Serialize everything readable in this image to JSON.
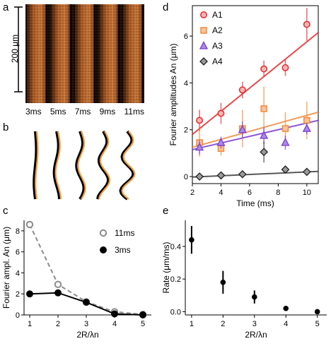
{
  "panels": {
    "a": {
      "letter": "a",
      "scale_label": "200 μm",
      "time_labels": [
        "3ms",
        "5ms",
        "7ms",
        "9ms",
        "11ms"
      ],
      "colors": {
        "background": "#1a0d05",
        "front": "#e0782f"
      }
    },
    "b": {
      "letter": "b",
      "colors": {
        "black_trace": "#000000",
        "orange_trace": "#f0a040"
      }
    },
    "c": {
      "letter": "c"
    },
    "d": {
      "letter": "d"
    },
    "e": {
      "letter": "e"
    }
  },
  "chart_data": [
    {
      "id": "c",
      "type": "line",
      "xlabel": "2R/λn",
      "ylabel": "Fourier ampl. An (μm)",
      "x": [
        1,
        2,
        3,
        4,
        5
      ],
      "xlim": [
        0.8,
        5.3
      ],
      "ylim": [
        0,
        9
      ],
      "xticks": [
        1,
        2,
        3,
        4,
        5
      ],
      "yticks": [
        0,
        2,
        4,
        6,
        8
      ],
      "legend_position": "top-right",
      "series": [
        {
          "name": "11ms",
          "values": [
            8.6,
            2.9,
            1.25,
            0.3,
            0.05
          ],
          "color": "#8c8c8c",
          "style": "dashed",
          "marker": "open-circle"
        },
        {
          "name": "3ms",
          "values": [
            2.0,
            2.1,
            1.2,
            0.1,
            0.0
          ],
          "color": "#000000",
          "style": "solid",
          "marker": "filled-circle"
        }
      ]
    },
    {
      "id": "d",
      "type": "scatter",
      "xlabel": "Time (ms)",
      "ylabel": "Fourier amplitudes An (μm)",
      "xlim": [
        2,
        10.8
      ],
      "ylim": [
        -0.3,
        7.3
      ],
      "xticks": [
        2,
        4,
        6,
        8,
        10
      ],
      "yticks": [
        0,
        2,
        4,
        6
      ],
      "legend_position": "top-left",
      "x": [
        2.5,
        4,
        5.5,
        7,
        8.5,
        10
      ],
      "series": [
        {
          "name": "A1",
          "values": [
            2.4,
            2.7,
            3.7,
            4.6,
            4.65,
            6.5
          ],
          "errors": [
            0.45,
            0.45,
            0.35,
            0.35,
            0.35,
            0.7
          ],
          "color": "#e8282b",
          "marker": "circle",
          "fit": [
            1.8,
            6.15
          ]
        },
        {
          "name": "A2",
          "values": [
            1.45,
            1.2,
            2.05,
            2.9,
            2.05,
            2.4
          ],
          "errors": [
            0.6,
            0.3,
            0.8,
            0.95,
            0.7,
            0.8
          ],
          "color": "#f28a3c",
          "marker": "square",
          "fit": [
            1.25,
            2.75
          ]
        },
        {
          "name": "A3",
          "values": [
            1.25,
            1.45,
            2.0,
            1.75,
            1.45,
            2.05
          ],
          "errors": [
            0.3,
            0.25,
            0.35,
            0.35,
            0.3,
            0.25
          ],
          "color": "#7a3ccf",
          "marker": "triangle",
          "fit": [
            1.15,
            2.4
          ]
        },
        {
          "name": "A4",
          "values": [
            0.0,
            0.05,
            0.1,
            1.05,
            0.3,
            0.2
          ],
          "errors": [
            0.05,
            0.1,
            0.15,
            0.45,
            0.12,
            0.1
          ],
          "color": "#3c3c3c",
          "marker": "diamond",
          "fit": [
            -0.02,
            0.22
          ]
        }
      ]
    },
    {
      "id": "e",
      "type": "scatter",
      "xlabel": "2R/λn",
      "ylabel": "Rate (μm/ms)",
      "x": [
        1,
        2,
        3,
        4,
        5
      ],
      "xlim": [
        0.8,
        5.3
      ],
      "ylim": [
        -0.02,
        0.56
      ],
      "xticks": [
        1,
        2,
        3,
        4,
        5
      ],
      "yticks": [
        0.0,
        0.2,
        0.4
      ],
      "values": [
        0.44,
        0.18,
        0.09,
        0.02,
        0.0
      ],
      "errors": [
        0.085,
        0.07,
        0.04,
        0.005,
        0.005
      ],
      "color": "#000000"
    }
  ]
}
